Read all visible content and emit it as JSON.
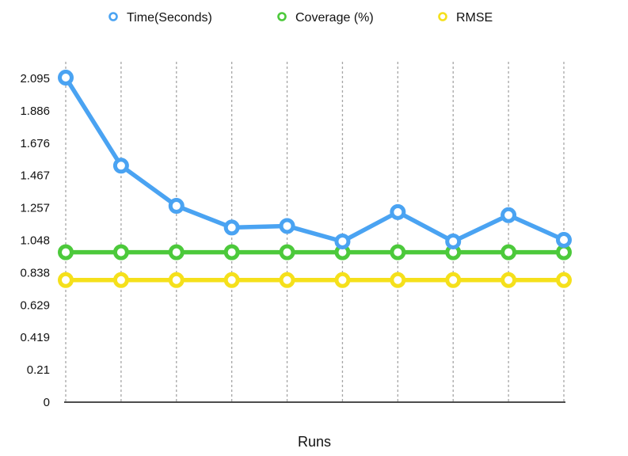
{
  "chart_data": {
    "type": "line",
    "title": "",
    "xlabel": "Runs",
    "ylabel": "",
    "ylim": [
      0,
      2.095
    ],
    "y_ticks": [
      "0",
      "0.21",
      "0.419",
      "0.629",
      "0.838",
      "1.048",
      "1.257",
      "1.467",
      "1.676",
      "1.886",
      "2.095"
    ],
    "grid": "vertical dotted",
    "legend_position": "top",
    "x": [
      1,
      2,
      3,
      4,
      5,
      6,
      7,
      8,
      9,
      10
    ],
    "series": [
      {
        "name": "Time(Seconds)",
        "color": "#4aa3f2",
        "values": [
          2.1,
          1.53,
          1.27,
          1.13,
          1.14,
          1.04,
          1.23,
          1.04,
          1.21,
          1.05
        ]
      },
      {
        "name": "Coverage (%)",
        "color": "#4cc93b",
        "values": [
          0.97,
          0.97,
          0.97,
          0.97,
          0.97,
          0.97,
          0.97,
          0.97,
          0.97,
          0.97
        ]
      },
      {
        "name": "RMSE",
        "color": "#f5e01b",
        "values": [
          0.79,
          0.79,
          0.79,
          0.79,
          0.79,
          0.79,
          0.79,
          0.79,
          0.79,
          0.79
        ]
      }
    ]
  }
}
